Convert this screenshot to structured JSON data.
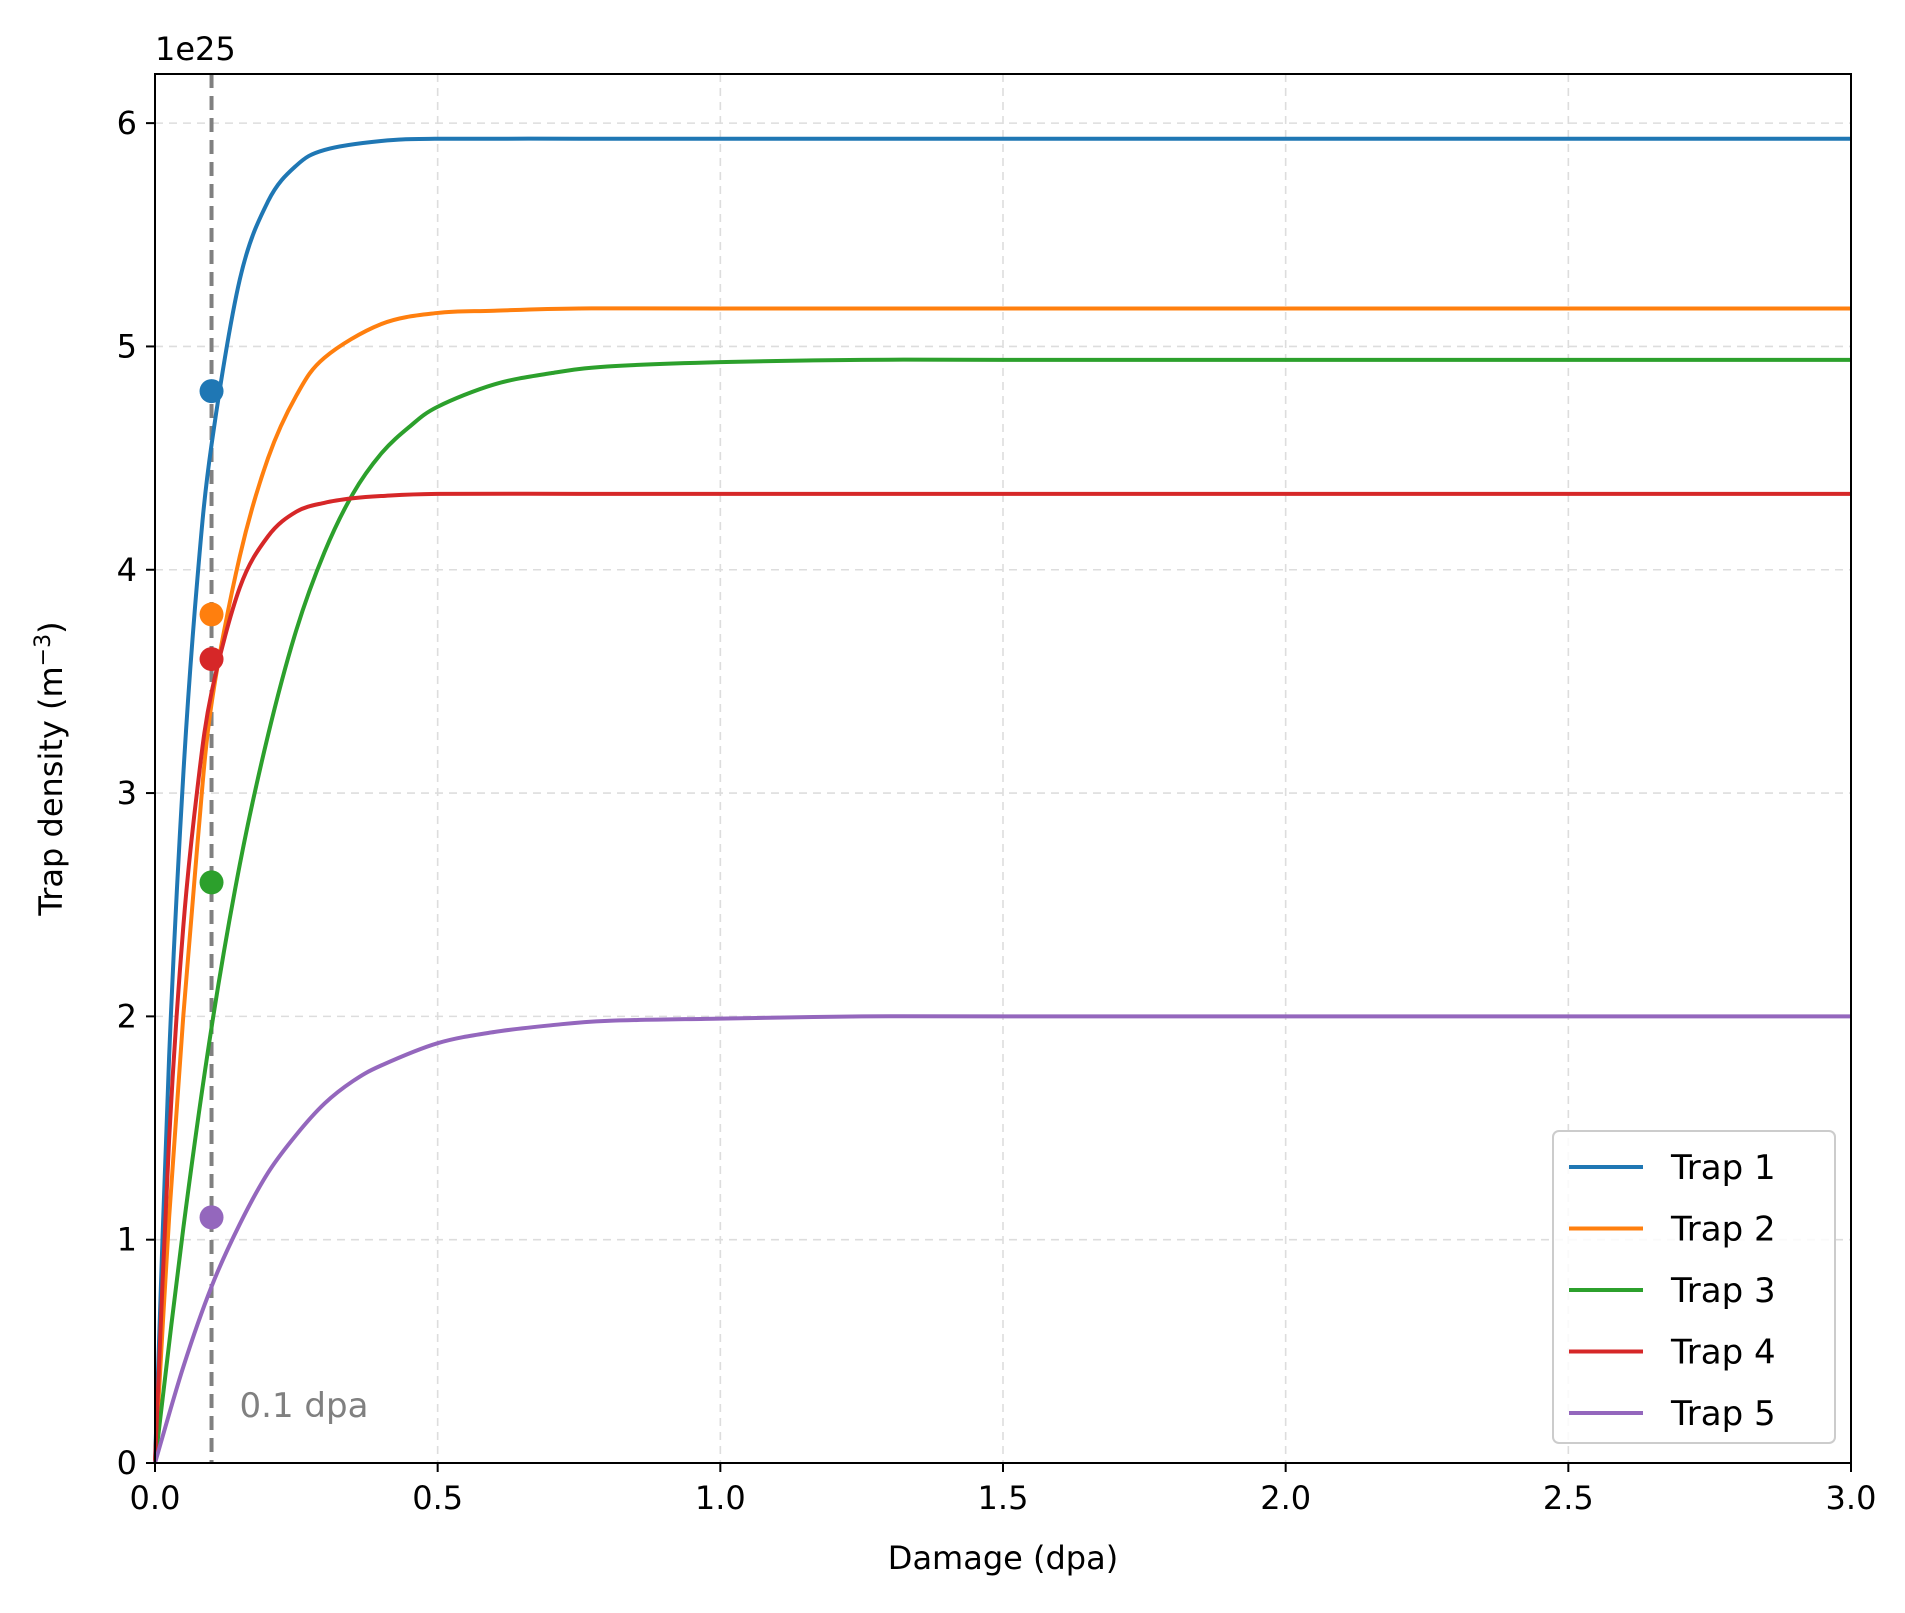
{
  "chart_data": {
    "type": "line",
    "xlabel": "Damage (dpa)",
    "ylabel": "Trap density (m",
    "ylabel_sup": "−3",
    "ylabel_close": ")",
    "y_offset_text": "1e25",
    "xlim": [
      0,
      3
    ],
    "ylim": [
      0,
      6.22
    ],
    "x_ticks": [
      0,
      0.5,
      1.0,
      1.5,
      2.0,
      2.5,
      3.0
    ],
    "x_tick_labels": [
      "0.0",
      "0.5",
      "1.0",
      "1.5",
      "2.0",
      "2.5",
      "3.0"
    ],
    "y_ticks": [
      0,
      1,
      2,
      3,
      4,
      5,
      6
    ],
    "y_tick_labels": [
      "0",
      "1",
      "2",
      "3",
      "4",
      "5",
      "6"
    ],
    "grid": true,
    "legend_position": "bottom-right",
    "series": [
      {
        "name": "Trap 1",
        "color": "#1f77b4",
        "x": [
          0,
          0.025,
          0.05,
          0.075,
          0.1,
          0.15,
          0.2,
          0.25,
          0.3,
          0.4,
          0.5,
          0.75,
          1.0,
          1.5,
          2.0,
          2.5,
          3.0
        ],
        "y": [
          0,
          1.82,
          3.08,
          3.96,
          4.56,
          5.3,
          5.65,
          5.81,
          5.88,
          5.92,
          5.93,
          5.93,
          5.93,
          5.93,
          5.93,
          5.93,
          5.93
        ]
      },
      {
        "name": "Trap 2",
        "color": "#ff7f0e",
        "x": [
          0,
          0.025,
          0.05,
          0.075,
          0.1,
          0.15,
          0.2,
          0.25,
          0.3,
          0.4,
          0.5,
          0.6,
          0.75,
          1.0,
          1.5,
          2.0,
          2.5,
          3.0
        ],
        "y": [
          0,
          1.1,
          2.0,
          2.77,
          3.4,
          4.06,
          4.5,
          4.78,
          4.95,
          5.1,
          5.15,
          5.16,
          5.17,
          5.17,
          5.17,
          5.17,
          5.17,
          5.17
        ]
      },
      {
        "name": "Trap 3",
        "color": "#2ca02c",
        "x": [
          0,
          0.05,
          0.1,
          0.15,
          0.2,
          0.25,
          0.3,
          0.35,
          0.4,
          0.45,
          0.5,
          0.6,
          0.7,
          0.8,
          1.0,
          1.25,
          1.5,
          2.0,
          2.5,
          3.0
        ],
        "y": [
          0,
          1.05,
          1.95,
          2.68,
          3.26,
          3.73,
          4.08,
          4.34,
          4.52,
          4.64,
          4.73,
          4.83,
          4.88,
          4.91,
          4.93,
          4.94,
          4.94,
          4.94,
          4.94,
          4.94
        ]
      },
      {
        "name": "Trap 4",
        "color": "#d62728",
        "x": [
          0,
          0.025,
          0.05,
          0.075,
          0.1,
          0.15,
          0.2,
          0.25,
          0.3,
          0.35,
          0.4,
          0.5,
          0.75,
          1.0,
          1.5,
          2.0,
          2.5,
          3.0
        ],
        "y": [
          0,
          1.45,
          2.4,
          3.02,
          3.45,
          3.92,
          4.15,
          4.26,
          4.3,
          4.32,
          4.33,
          4.34,
          4.34,
          4.34,
          4.34,
          4.34,
          4.34,
          4.34
        ]
      },
      {
        "name": "Trap 5",
        "color": "#9467bd",
        "x": [
          0,
          0.05,
          0.1,
          0.15,
          0.2,
          0.25,
          0.3,
          0.35,
          0.4,
          0.5,
          0.6,
          0.7,
          0.8,
          1.0,
          1.25,
          1.5,
          2.0,
          2.5,
          3.0
        ],
        "y": [
          0,
          0.43,
          0.79,
          1.07,
          1.3,
          1.47,
          1.61,
          1.71,
          1.78,
          1.88,
          1.93,
          1.96,
          1.98,
          1.99,
          2.0,
          2.0,
          2.0,
          2.0,
          2.0
        ]
      }
    ],
    "markers": [
      {
        "series": "Trap 1",
        "x": 0.1,
        "y": 4.8
      },
      {
        "series": "Trap 2",
        "x": 0.1,
        "y": 3.8
      },
      {
        "series": "Trap 3",
        "x": 0.1,
        "y": 2.6
      },
      {
        "series": "Trap 4",
        "x": 0.1,
        "y": 3.6
      },
      {
        "series": "Trap 5",
        "x": 0.1,
        "y": 1.1
      }
    ],
    "vline": {
      "x": 0.1,
      "color": "#808080",
      "style": "dashed",
      "label": "0.1 dpa"
    }
  }
}
